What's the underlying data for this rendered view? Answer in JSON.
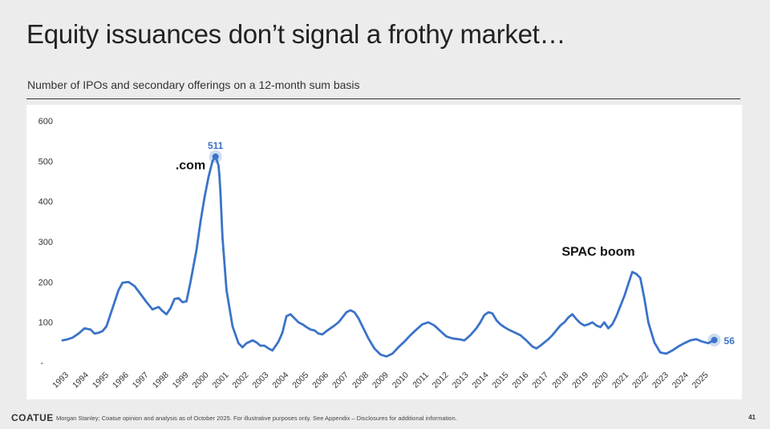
{
  "slide": {
    "title": "Equity issuances don’t signal a frothy market…",
    "subtitle": "Number of IPOs and secondary offerings on a 12-month sum basis",
    "footer_logo": "COATUE",
    "footer_note": "Morgan Stanley; Coatue opinion and analysis as of October 2025. For illustrative purposes only.  See Appendix – Disclosures for additional information.",
    "page_number": "41"
  },
  "chart_data": {
    "type": "line",
    "title": "",
    "xlabel": "",
    "ylabel": "",
    "ylim": [
      0,
      600
    ],
    "xlim": [
      1993,
      2025.9
    ],
    "y_ticks": [
      600,
      500,
      400,
      300,
      200,
      100
    ],
    "y_zero_label": "-",
    "x_ticks": [
      "1993",
      "1994",
      "1995",
      "1996",
      "1997",
      "1998",
      "1999",
      "2000",
      "2001",
      "2002",
      "2003",
      "2004",
      "2005",
      "2006",
      "2007",
      "2008",
      "2009",
      "2010",
      "2011",
      "2012",
      "2013",
      "2014",
      "2015",
      "2016",
      "2017",
      "2018",
      "2019",
      "2020",
      "2021",
      "2022",
      "2023",
      "2024",
      "2025"
    ],
    "grid": false,
    "line_color": "#3b73c8",
    "series": [
      {
        "x": [
          1993.0,
          1993.2,
          1993.5,
          1993.8,
          1994.1,
          1994.4,
          1994.6,
          1994.8,
          1995.0,
          1995.2,
          1995.4,
          1995.6,
          1995.8,
          1996.0,
          1996.3,
          1996.6,
          1996.9,
          1997.2,
          1997.5,
          1997.8,
          1998.0,
          1998.2,
          1998.4,
          1998.6,
          1998.8,
          1999.0,
          1999.2,
          1999.4,
          1999.7,
          1999.9,
          2000.1,
          2000.3,
          2000.5,
          2000.65,
          2000.8,
          2000.85,
          2000.9,
          2001.0,
          2001.2,
          2001.5,
          2001.8,
          2002.0,
          2002.2,
          2002.5,
          2002.7,
          2002.9,
          2003.1,
          2003.3,
          2003.5,
          2003.8,
          2004.0,
          2004.2,
          2004.4,
          2004.6,
          2004.8,
          2005.0,
          2005.2,
          2005.4,
          2005.6,
          2005.8,
          2006.0,
          2006.2,
          2006.4,
          2006.6,
          2006.8,
          2007.0,
          2007.2,
          2007.4,
          2007.6,
          2007.8,
          2008.0,
          2008.3,
          2008.6,
          2008.9,
          2009.2,
          2009.5,
          2009.8,
          2010.1,
          2010.4,
          2010.7,
          2011.0,
          2011.3,
          2011.6,
          2011.9,
          2012.2,
          2012.5,
          2012.8,
          2013.1,
          2013.4,
          2013.7,
          2013.9,
          2014.1,
          2014.3,
          2014.5,
          2014.7,
          2014.9,
          2015.1,
          2015.3,
          2015.6,
          2015.9,
          2016.2,
          2016.5,
          2016.7,
          2016.9,
          2017.1,
          2017.3,
          2017.5,
          2017.7,
          2017.9,
          2018.1,
          2018.3,
          2018.5,
          2018.7,
          2018.9,
          2019.1,
          2019.3,
          2019.5,
          2019.7,
          2019.9,
          2020.1,
          2020.3,
          2020.5,
          2020.7,
          2020.9,
          2021.1,
          2021.3,
          2021.5,
          2021.7,
          2021.9,
          2022.1,
          2022.3,
          2022.6,
          2022.9,
          2023.2,
          2023.5,
          2023.8,
          2024.1,
          2024.4,
          2024.7,
          2025.0,
          2025.3,
          2025.6
        ],
        "y": [
          55,
          57,
          62,
          72,
          85,
          82,
          72,
          74,
          78,
          90,
          120,
          150,
          180,
          198,
          200,
          190,
          170,
          150,
          132,
          138,
          128,
          120,
          135,
          158,
          160,
          150,
          152,
          200,
          280,
          350,
          410,
          460,
          500,
          511,
          490,
          460,
          420,
          310,
          180,
          90,
          48,
          38,
          48,
          55,
          50,
          42,
          42,
          35,
          30,
          52,
          75,
          115,
          120,
          110,
          100,
          95,
          88,
          82,
          80,
          72,
          70,
          78,
          85,
          92,
          100,
          112,
          125,
          130,
          125,
          110,
          90,
          60,
          35,
          20,
          15,
          22,
          38,
          52,
          68,
          82,
          95,
          100,
          92,
          78,
          65,
          60,
          58,
          55,
          68,
          85,
          100,
          118,
          125,
          122,
          105,
          95,
          88,
          82,
          75,
          68,
          55,
          40,
          35,
          42,
          50,
          58,
          68,
          80,
          92,
          100,
          112,
          120,
          108,
          98,
          92,
          95,
          100,
          92,
          88,
          100,
          85,
          95,
          115,
          140,
          165,
          195,
          225,
          220,
          210,
          160,
          100,
          50,
          25,
          22,
          30,
          40,
          48,
          55,
          58,
          52,
          48,
          56
        ]
      }
    ],
    "annotations": [
      {
        "text": ".com",
        "x": 1999.4,
        "y": 480
      },
      {
        "text": "SPAC boom",
        "x": 2019.8,
        "y": 265
      }
    ],
    "point_labels": [
      {
        "text": "511",
        "x": 2000.65,
        "y": 511
      },
      {
        "text": "56",
        "x": 2025.6,
        "y": 56
      }
    ]
  }
}
